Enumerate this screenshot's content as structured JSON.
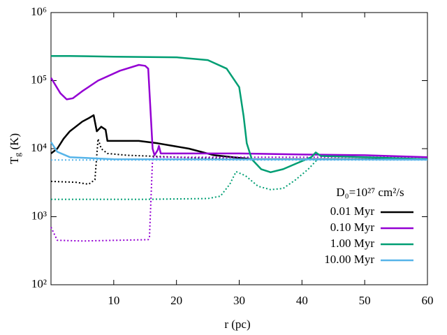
{
  "chart_data": {
    "type": "line",
    "xlabel": "r (pc)",
    "ylabel": [
      "T",
      "g",
      " (K)"
    ],
    "xlim": [
      0,
      60
    ],
    "xticks": [
      10,
      20,
      30,
      40,
      50,
      60
    ],
    "ylim": [
      100,
      1000000
    ],
    "ylog": true,
    "yticks": [
      {
        "value": 100,
        "label": "10²"
      },
      {
        "value": 1000,
        "label": "10³"
      },
      {
        "value": 10000,
        "label": "10⁴"
      },
      {
        "value": 100000,
        "label": "10⁵"
      },
      {
        "value": 1000000,
        "label": "10⁶"
      }
    ],
    "legend_title": "D₀=10²⁷ cm²/s",
    "legend_position": "lower right",
    "series": [
      {
        "name": "0.01 Myr",
        "color": "#000000",
        "style": "solid",
        "x": [
          0,
          1,
          2,
          3,
          5,
          6,
          6.8,
          7.3,
          8,
          8.7,
          9,
          12,
          14,
          17,
          22,
          26,
          32,
          60
        ],
        "values": [
          8500,
          10000,
          14000,
          18000,
          25000,
          28000,
          31000,
          18000,
          21000,
          19000,
          13000,
          13000,
          13000,
          12000,
          10000,
          8000,
          7000,
          7000
        ]
      },
      {
        "name": null,
        "color": "#000000",
        "style": "dotted",
        "x": [
          0,
          4,
          6,
          7,
          7.5,
          8,
          9,
          12,
          20,
          30,
          60
        ],
        "values": [
          3300,
          3200,
          3000,
          3500,
          14000,
          10000,
          8500,
          8000,
          7500,
          7000,
          7000
        ]
      },
      {
        "name": "0.10 Myr",
        "color": "#9400d3",
        "style": "solid",
        "x": [
          0,
          1.5,
          2.5,
          3.5,
          5,
          7.5,
          11,
          14,
          15,
          15.5,
          16.2,
          16.5,
          17,
          17.2,
          17.5,
          30,
          40,
          50,
          60
        ],
        "values": [
          110000,
          65000,
          53000,
          55000,
          70000,
          100000,
          140000,
          170000,
          165000,
          150000,
          10000,
          8000,
          9500,
          11000,
          8500,
          8500,
          8200,
          8000,
          7500
        ]
      },
      {
        "name": null,
        "color": "#9400d3",
        "style": "dotted",
        "x": [
          0,
          1,
          5,
          15.5,
          15.7,
          16.2,
          60
        ],
        "values": [
          700,
          450,
          440,
          460,
          500,
          7500,
          7500
        ]
      },
      {
        "name": "1.00 Myr",
        "color": "#009e73",
        "style": "solid",
        "x": [
          0,
          3,
          10,
          20,
          25,
          28,
          30,
          30.7,
          31.2,
          32,
          33.5,
          35,
          37,
          39,
          41.5,
          42.2,
          43,
          50,
          60
        ],
        "values": [
          230000,
          230000,
          225000,
          220000,
          200000,
          150000,
          80000,
          30000,
          12000,
          7000,
          5000,
          4500,
          5000,
          6000,
          7500,
          8800,
          7800,
          7500,
          7000
        ]
      },
      {
        "name": null,
        "color": "#009e73",
        "style": "dotted",
        "x": [
          0,
          15,
          25,
          27,
          28.5,
          29.5,
          31,
          33,
          35,
          37,
          39,
          41,
          42.5,
          60
        ],
        "values": [
          1800,
          1800,
          1850,
          2000,
          3000,
          4600,
          4000,
          2800,
          2500,
          2600,
          3500,
          5000,
          7000,
          7000
        ]
      },
      {
        "name": "10.00 Myr",
        "color": "#56b4e9",
        "style": "solid",
        "x": [
          0,
          1,
          3,
          10,
          60
        ],
        "values": [
          12500,
          9000,
          7500,
          7000,
          6900
        ]
      },
      {
        "name": null,
        "color": "#56b4e9",
        "style": "dotted",
        "x": [
          0,
          60
        ],
        "values": [
          6800,
          6800
        ]
      }
    ]
  }
}
